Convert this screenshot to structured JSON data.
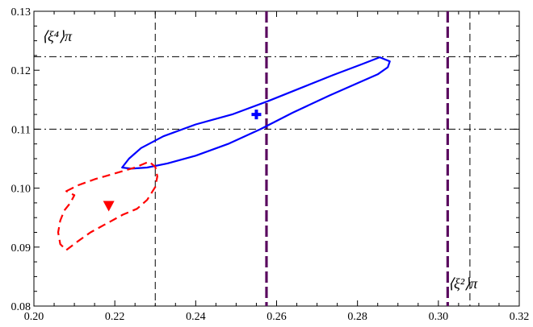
{
  "chart_data": {
    "type": "scatter",
    "title": "",
    "xlabel": "⟨ξ²⟩π",
    "ylabel": "⟨ξ⁴⟩π",
    "xlim": [
      0.2,
      0.32
    ],
    "ylim": [
      0.08,
      0.13
    ],
    "xticks": [
      "0.20",
      "0.22",
      "0.24",
      "0.26",
      "0.28",
      "0.30",
      "0.32"
    ],
    "yticks": [
      "0.08",
      "0.09",
      "0.10",
      "0.11",
      "0.12",
      "0.13"
    ],
    "grid": false,
    "points": [
      {
        "marker": "cross",
        "color": "#0000ff",
        "x": 0.255,
        "y": 0.1125
      },
      {
        "marker": "triangle-down",
        "color": "#ff0000",
        "x": 0.2185,
        "y": 0.097
      }
    ],
    "contours": [
      {
        "style": "solid",
        "color": "#0000ff",
        "x": [
          0.2218,
          0.2235,
          0.2265,
          0.232,
          0.24,
          0.249,
          0.258,
          0.266,
          0.274,
          0.281,
          0.2855,
          0.288,
          0.2875,
          0.285,
          0.28,
          0.273,
          0.264,
          0.256,
          0.248,
          0.24,
          0.233,
          0.228,
          0.224,
          0.2218
        ],
        "y": [
          0.1035,
          0.105,
          0.1068,
          0.1088,
          0.1108,
          0.1125,
          0.1148,
          0.117,
          0.1192,
          0.121,
          0.1222,
          0.1215,
          0.1205,
          0.1193,
          0.1178,
          0.1157,
          0.1128,
          0.11,
          0.1075,
          0.1055,
          0.1042,
          0.1035,
          0.1033,
          0.1035
        ]
      },
      {
        "style": "dashed",
        "color": "#ff0000",
        "x": [
          0.208,
          0.211,
          0.215,
          0.22,
          0.225,
          0.2285,
          0.23,
          0.2305,
          0.23,
          0.228,
          0.2255,
          0.222,
          0.218,
          0.214,
          0.2105,
          0.208,
          0.2065,
          0.206,
          0.2065,
          0.2075,
          0.209,
          0.21,
          0.208
        ],
        "y": [
          0.0995,
          0.1005,
          0.1015,
          0.1025,
          0.1035,
          0.1045,
          0.1036,
          0.102,
          0.1002,
          0.098,
          0.0965,
          0.0955,
          0.094,
          0.0925,
          0.0908,
          0.0895,
          0.0905,
          0.0925,
          0.0945,
          0.0962,
          0.0975,
          0.0988,
          0.0995
        ]
      }
    ],
    "vertical_lines": [
      {
        "x": 0.23,
        "style": "dashed",
        "color": "#000000",
        "width": "thin"
      },
      {
        "x": 0.2575,
        "style": "dashed",
        "color": "#5a0a5f",
        "width": "thick"
      },
      {
        "x": 0.3023,
        "style": "dashed",
        "color": "#5a0a5f",
        "width": "thick"
      },
      {
        "x": 0.3078,
        "style": "dashed",
        "color": "#000000",
        "width": "thin"
      }
    ],
    "horizontal_lines": [
      {
        "y": 0.1223,
        "style": "dashdot",
        "color": "#000000"
      },
      {
        "y": 0.11,
        "style": "dashdot",
        "color": "#000000"
      }
    ]
  }
}
